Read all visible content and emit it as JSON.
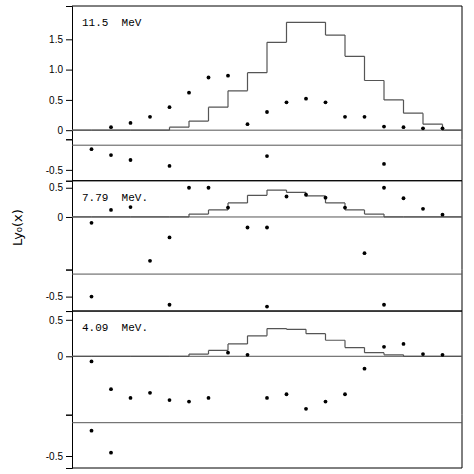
{
  "chart_data": [
    {
      "type": "histogram",
      "ylabel": "Ly₀(x)",
      "annotation": "11.5  MeV",
      "series": [
        {
          "type": "histogram",
          "color": "#555555",
          "bins": [
            -10,
            -9,
            -8,
            -7,
            -6,
            -5,
            -4,
            -3,
            -2,
            -1,
            0,
            1,
            2,
            3,
            4,
            5,
            6,
            7,
            8,
            9,
            10
          ],
          "values": [
            0,
            0,
            0,
            0,
            0,
            0.05,
            0.15,
            0.38,
            0.65,
            0.95,
            1.45,
            1.78,
            1.78,
            1.57,
            1.22,
            0.82,
            0.5,
            0.28,
            0.1,
            0
          ]
        },
        {
          "type": "scatter",
          "color": "#000000",
          "x": [
            -8,
            -7,
            -6,
            -5,
            -4,
            -3,
            -2,
            -1,
            0,
            1,
            2,
            3,
            4,
            5,
            6,
            7,
            8,
            9
          ],
          "values": [
            0.05,
            0.12,
            0.22,
            0.38,
            0.62,
            0.87,
            0.9,
            0.1,
            0.3,
            0.46,
            0.52,
            0.46,
            0.22,
            0.22,
            0.06,
            0.05,
            0.03,
            0.03
          ]
        }
      ],
      "hline": 0,
      "xlim": [
        -10,
        10
      ],
      "ylim": [
        -0.15,
        2.05
      ],
      "yticks": [
        0,
        0.5,
        {
          "value": 1.0,
          "label": "1.0"
        },
        1.5
      ],
      "tick_labels": "y"
    },
    {
      "type": "scatter",
      "series": [
        {
          "type": "scatter",
          "color": "#000000",
          "x": [
            -9,
            -8,
            -7,
            -5,
            0,
            6
          ],
          "values": [
            -0.08,
            -0.2,
            -0.3,
            -0.42,
            -0.22,
            -0.38
          ]
        }
      ],
      "hline": 0,
      "xlim": [
        -10,
        10
      ],
      "ylim": [
        -0.72,
        0.12
      ],
      "yticks": [
        -0.5
      ],
      "tick_labels": "y"
    },
    {
      "type": "histogram",
      "annotation": "7.79  MeV.",
      "series": [
        {
          "type": "histogram",
          "color": "#555555",
          "bins": [
            -10,
            -9,
            -8,
            -7,
            -6,
            -5,
            -4,
            -3,
            -2,
            -1,
            0,
            1,
            2,
            3,
            4,
            5,
            6,
            7,
            8,
            9,
            10
          ],
          "values": [
            0,
            0,
            0,
            0,
            0,
            0,
            0.05,
            0.12,
            0.24,
            0.37,
            0.46,
            0.42,
            0.36,
            0.24,
            0.12,
            0.05,
            0,
            0,
            0,
            0
          ]
        },
        {
          "type": "scatter",
          "color": "#000000",
          "x": [
            -9,
            -8,
            -7,
            -6,
            -5,
            -4,
            -3,
            -2,
            -1,
            0,
            1,
            2,
            3,
            4,
            5,
            6,
            7,
            8,
            9
          ],
          "values": [
            -0.1,
            0.12,
            0.17,
            -0.75,
            -0.35,
            0.5,
            0.5,
            0.16,
            -0.18,
            -0.18,
            0.35,
            0.38,
            0.33,
            0.16,
            -0.62,
            0.5,
            0.32,
            0.14,
            0.04
          ]
        }
      ],
      "hline": 0,
      "xlim": [
        -10,
        10
      ],
      "ylim": [
        -0.9,
        0.62
      ],
      "yticks": [
        0,
        0.5
      ],
      "tick_labels": "y"
    },
    {
      "type": "scatter",
      "series": [
        {
          "type": "scatter",
          "color": "#000000",
          "x": [
            -9,
            -5,
            0,
            6
          ],
          "values": [
            -0.5,
            -0.68,
            -0.72,
            -0.68
          ]
        }
      ],
      "hline": 0,
      "xlim": [
        -10,
        10
      ],
      "ylim": [
        -0.82,
        0.1
      ],
      "yticks": [
        -0.5
      ],
      "tick_labels": "y"
    },
    {
      "type": "histogram",
      "annotation": "4.09  MeV.",
      "series": [
        {
          "type": "histogram",
          "color": "#555555",
          "bins": [
            -10,
            -9,
            -8,
            -7,
            -6,
            -5,
            -4,
            -3,
            -2,
            -1,
            0,
            1,
            2,
            3,
            4,
            5,
            6,
            7,
            8,
            9,
            10
          ],
          "values": [
            0,
            0,
            0,
            0,
            0,
            0,
            0.03,
            0.08,
            0.17,
            0.28,
            0.38,
            0.37,
            0.31,
            0.22,
            0.12,
            0.05,
            0.02,
            0,
            0,
            0
          ]
        },
        {
          "type": "scatter",
          "color": "#000000",
          "x": [
            -9,
            -8,
            -7,
            -6,
            -5,
            -4,
            -3,
            -2,
            -1,
            0,
            1,
            2,
            3,
            4,
            5,
            6,
            7,
            8,
            9
          ],
          "values": [
            -0.07,
            -0.45,
            -0.57,
            -0.5,
            -0.6,
            -0.62,
            -0.57,
            0.05,
            0.02,
            -0.57,
            -0.52,
            -0.72,
            -0.62,
            -0.52,
            -0.17,
            0.13,
            0.17,
            0.03,
            0.02
          ]
        }
      ],
      "hline": 0,
      "xlim": [
        -10,
        10
      ],
      "ylim": [
        -0.8,
        0.62
      ],
      "yticks": [
        0,
        0.5
      ],
      "tick_labels": "y"
    },
    {
      "type": "scatter",
      "series": [
        {
          "type": "scatter",
          "color": "#000000",
          "x": [
            -9,
            -8
          ],
          "values": [
            -0.12,
            -0.45
          ]
        }
      ],
      "hline": 0,
      "xlim": [
        -10,
        10
      ],
      "ylim": [
        -0.68,
        0.12
      ],
      "yticks": [
        -0.5
      ],
      "tick_labels": "y"
    }
  ]
}
